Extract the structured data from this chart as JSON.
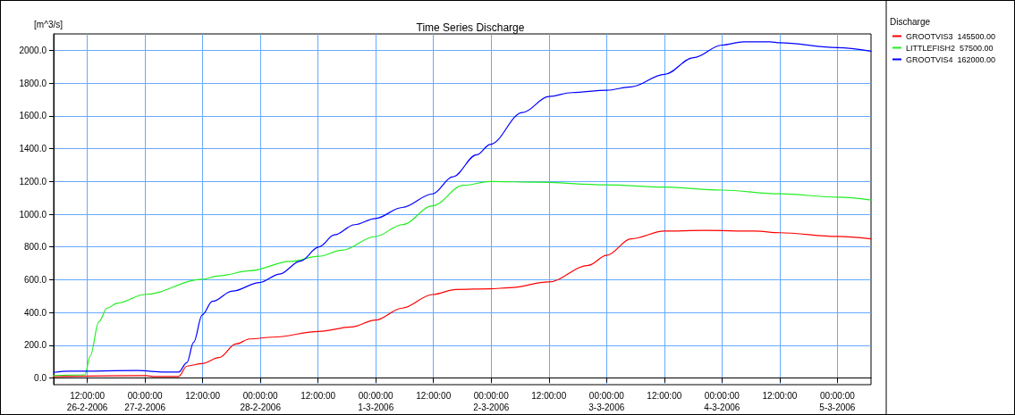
{
  "chart_data": {
    "type": "line",
    "title": "Time Series Discharge",
    "ylabel": "[m^3/s]",
    "legend_title": "Discharge",
    "legend": "right",
    "grid": true,
    "marker": "none",
    "line_style": "solid",
    "xlim": [
      "2006-02-26T05:00",
      "2006-03-05T07:00"
    ],
    "xticks": [
      {
        "value": "2006-02-26T12:00",
        "label": "12:00:00\n26-2-2006"
      },
      {
        "value": "2006-02-27T00:00",
        "label": "00:00:00\n27-2-2006"
      },
      {
        "value": "2006-02-27T12:00",
        "label": "12:00:00"
      },
      {
        "value": "2006-02-28T00:00",
        "label": "00:00:00\n28-2-2006"
      },
      {
        "value": "2006-02-28T12:00",
        "label": "12:00:00"
      },
      {
        "value": "2006-03-01T00:00",
        "label": "00:00:00\n1-3-2006"
      },
      {
        "value": "2006-03-01T12:00",
        "label": "12:00:00"
      },
      {
        "value": "2006-03-02T00:00",
        "label": "00:00:00\n2-3-2006"
      },
      {
        "value": "2006-03-02T12:00",
        "label": "12:00:00"
      },
      {
        "value": "2006-03-03T00:00",
        "label": "00:00:00\n3-3-2006"
      },
      {
        "value": "2006-03-03T12:00",
        "label": "12:00:00"
      },
      {
        "value": "2006-03-04T00:00",
        "label": "00:00:00\n4-3-2006"
      },
      {
        "value": "2006-03-04T12:00",
        "label": "12:00:00"
      },
      {
        "value": "2006-03-05T00:00",
        "label": "00:00:00\n5-3-2006"
      }
    ],
    "ylim": [
      -40,
      2100
    ],
    "yticks": [
      {
        "value": 0,
        "label": "0.0"
      },
      {
        "value": 200,
        "label": "200.0"
      },
      {
        "value": 400,
        "label": "400.0"
      },
      {
        "value": 600,
        "label": "600.0"
      },
      {
        "value": 800,
        "label": "800.0"
      },
      {
        "value": 1000,
        "label": "1000.0"
      },
      {
        "value": 1200,
        "label": "1200.0"
      },
      {
        "value": 1400,
        "label": "1400.0"
      },
      {
        "value": 1600,
        "label": "1600.0"
      },
      {
        "value": 1800,
        "label": "1800.0"
      },
      {
        "value": 2000,
        "label": "2000.0"
      }
    ],
    "series": [
      {
        "name": "GROOTVIS3  145500.00",
        "color": "#ff0000",
        "x": [
          "2006-02-26T05:00",
          "2006-02-27T00:18",
          "2006-02-27T01:36",
          "2006-02-27T07:00",
          "2006-02-27T08:42",
          "2006-02-27T11:54",
          "2006-02-27T15:24",
          "2006-02-27T18:54",
          "2006-02-27T21:48",
          "2006-02-28T02:42",
          "2006-02-28T12:12",
          "2006-02-28T18:54",
          "2006-02-28T23:54",
          "2006-03-01T05:30",
          "2006-03-01T11:48",
          "2006-03-01T16:42",
          "2006-03-01T23:48",
          "2006-03-02T03:48",
          "2006-03-02T12:00",
          "2006-03-02T20:12",
          "2006-03-03T00:00",
          "2006-03-03T05:06",
          "2006-03-03T12:00",
          "2006-03-03T20:12",
          "2006-03-04T06:54",
          "2006-03-04T12:00",
          "2006-03-05T00:00",
          "2006-03-05T07:00"
        ],
        "values": [
          10,
          15,
          10,
          10,
          73,
          89,
          125,
          208,
          239,
          250,
          285,
          312,
          354,
          427,
          510,
          541,
          545,
          551,
          587,
          688,
          749,
          850,
          897,
          901,
          897,
          887,
          865,
          850
        ]
      },
      {
        "name": "LITTLEFISH2  57500.00",
        "color": "#22ee22",
        "x": [
          "2006-02-26T05:00",
          "2006-02-26T11:30",
          "2006-02-26T12:36",
          "2006-02-26T14:24",
          "2006-02-26T16:06",
          "2006-02-26T18:18",
          "2006-02-26T23:54",
          "2006-02-27T11:54",
          "2006-02-27T15:24",
          "2006-02-27T21:48",
          "2006-02-28T06:12",
          "2006-02-28T12:12",
          "2006-02-28T16:54",
          "2006-02-28T23:54",
          "2006-03-01T05:30",
          "2006-03-01T11:48",
          "2006-03-01T18:12",
          "2006-03-01T23:48",
          "2006-03-02T09:18",
          "2006-03-03T00:00",
          "2006-03-03T12:00",
          "2006-03-04T00:00",
          "2006-03-04T12:00",
          "2006-03-05T00:00",
          "2006-03-05T07:00"
        ],
        "values": [
          15,
          20,
          135,
          343,
          427,
          458,
          510,
          603,
          624,
          655,
          712,
          743,
          780,
          864,
          936,
          1051,
          1176,
          1200,
          1195,
          1179,
          1165,
          1147,
          1125,
          1104,
          1087
        ]
      },
      {
        "name": "GROOTVIS4  162000.00",
        "color": "#0000ff",
        "x": [
          "2006-02-26T05:00",
          "2006-02-26T08:24",
          "2006-02-26T22:30",
          "2006-02-27T04:00",
          "2006-02-27T07:00",
          "2006-02-27T08:42",
          "2006-02-27T10:06",
          "2006-02-27T11:54",
          "2006-02-27T14:00",
          "2006-02-27T18:12",
          "2006-02-27T23:48",
          "2006-02-28T04:00",
          "2006-02-28T08:18",
          "2006-02-28T12:12",
          "2006-02-28T15:24",
          "2006-02-28T19:36",
          "2006-02-28T23:54",
          "2006-03-01T05:30",
          "2006-03-01T11:48",
          "2006-03-01T16:00",
          "2006-03-01T21:00",
          "2006-03-01T23:48",
          "2006-03-02T06:30",
          "2006-03-02T12:00",
          "2006-03-02T16:48",
          "2006-03-03T00:00",
          "2006-03-03T05:06",
          "2006-03-03T12:00",
          "2006-03-03T18:06",
          "2006-03-04T00:00",
          "2006-03-04T04:30",
          "2006-03-04T10:00",
          "2006-03-04T12:00",
          "2006-03-05T00:00",
          "2006-03-05T07:00"
        ],
        "values": [
          35,
          42,
          46,
          37,
          37,
          94,
          218,
          385,
          468,
          531,
          583,
          635,
          714,
          801,
          874,
          936,
          974,
          1041,
          1124,
          1228,
          1363,
          1426,
          1620,
          1718,
          1742,
          1756,
          1777,
          1853,
          1955,
          2032,
          2052,
          2052,
          2046,
          2016,
          1995
        ]
      }
    ]
  }
}
